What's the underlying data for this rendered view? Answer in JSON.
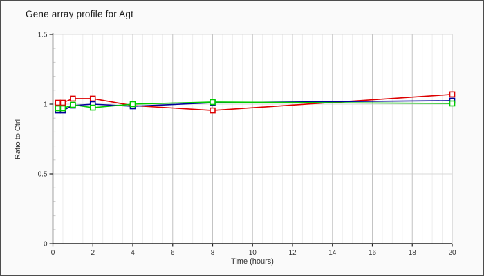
{
  "title": "Gene array profile for Agt",
  "chart_data": {
    "type": "line",
    "title": "Gene array profile for Agt",
    "xlabel": "Time (hours)",
    "ylabel": "Ratio to Ctrl",
    "xlim": [
      0,
      20
    ],
    "ylim": [
      0,
      1.5
    ],
    "x_major_ticks": [
      0,
      2,
      4,
      6,
      8,
      10,
      12,
      14,
      16,
      18,
      20
    ],
    "x_tick_labels": [
      "0",
      "2",
      "4",
      "6",
      "8",
      "10",
      "12",
      "14",
      "16",
      "18",
      "20"
    ],
    "x_minor_step": 0.5,
    "y_major_ticks": [
      0,
      0.5,
      1,
      1.5
    ],
    "y_tick_labels": [
      "0",
      "0.5",
      "1",
      "1.5"
    ],
    "y_minor_step": 0.1,
    "grid": true,
    "legend_position": "none",
    "marker": "open-square",
    "x": [
      0.25,
      0.5,
      1,
      2,
      4,
      8,
      20
    ],
    "series": [
      {
        "name": "series-red",
        "color": "#dd0000",
        "values": [
          1.01,
          1.01,
          1.04,
          1.04,
          0.99,
          0.955,
          1.07
        ]
      },
      {
        "name": "series-blue",
        "color": "#000099",
        "values": [
          0.955,
          0.955,
          0.99,
          1.0,
          0.985,
          1.01,
          1.025
        ]
      },
      {
        "name": "series-green",
        "color": "#00cc00",
        "values": [
          0.97,
          0.97,
          0.995,
          0.975,
          1.0,
          1.015,
          1.005
        ]
      }
    ]
  },
  "colors": {
    "frame_border": "#4d4d4d",
    "background": "#fafafa",
    "plot_background": "#ffffff",
    "minor_grid": "#ededed",
    "major_grid": "#c4c4c4",
    "horizontal_grid": "#d8d8d8",
    "axis": "#222222",
    "minor_tick": "#cccccc",
    "tick_text": "#333333"
  }
}
